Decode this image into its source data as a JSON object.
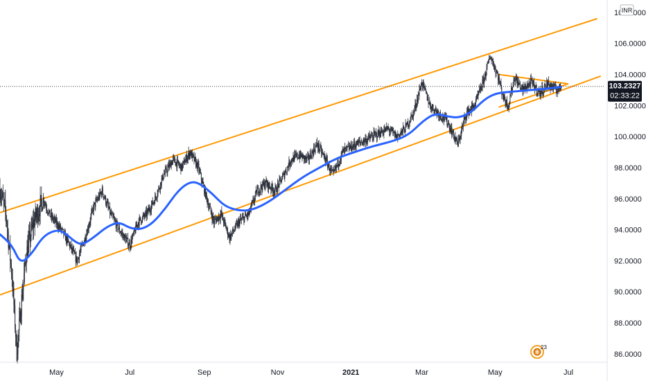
{
  "chart_data": {
    "type": "candlestick",
    "currency": "INR",
    "y_range": [
      85.5,
      108.8
    ],
    "x_range": [
      "2020-03-15",
      "2021-07-31"
    ],
    "y_ticks": [
      "86.0000",
      "88.0000",
      "90.0000",
      "92.0000",
      "94.0000",
      "96.0000",
      "98.0000",
      "100.0000",
      "102.0000",
      "104.0000",
      "106.0000",
      "108.0000"
    ],
    "x_ticks": [
      {
        "label": "May",
        "date": "2020-05-01",
        "bold": false
      },
      {
        "label": "Jul",
        "date": "2020-07-01",
        "bold": false
      },
      {
        "label": "Sep",
        "date": "2020-09-01",
        "bold": false
      },
      {
        "label": "Nov",
        "date": "2020-11-01",
        "bold": false
      },
      {
        "label": "2021",
        "date": "2021-01-01",
        "bold": true
      },
      {
        "label": "Mar",
        "date": "2021-03-01",
        "bold": false
      },
      {
        "label": "May",
        "date": "2021-05-01",
        "bold": false
      },
      {
        "label": "Jul",
        "date": "2021-07-01",
        "bold": false
      }
    ],
    "last_price": "103.2327",
    "last_price_value": 103.2327,
    "countdown": "02:33:22",
    "price_key_points": [
      [
        "2020-03-15",
        96.6
      ],
      [
        "2020-03-20",
        95.0
      ],
      [
        "2020-03-25",
        91.0
      ],
      [
        "2020-03-29",
        86.1
      ],
      [
        "2020-04-02",
        89.5
      ],
      [
        "2020-04-06",
        92.5
      ],
      [
        "2020-04-12",
        94.5
      ],
      [
        "2020-04-20",
        96.0
      ],
      [
        "2020-04-25",
        95.0
      ],
      [
        "2020-05-05",
        94.0
      ],
      [
        "2020-05-12",
        93.0
      ],
      [
        "2020-05-18",
        92.0
      ],
      [
        "2020-05-25",
        93.5
      ],
      [
        "2020-06-01",
        95.5
      ],
      [
        "2020-06-08",
        96.5
      ],
      [
        "2020-06-15",
        95.0
      ],
      [
        "2020-06-22",
        94.0
      ],
      [
        "2020-07-01",
        93.0
      ],
      [
        "2020-07-08",
        94.5
      ],
      [
        "2020-07-15",
        95.0
      ],
      [
        "2020-07-22",
        96.0
      ],
      [
        "2020-07-29",
        97.5
      ],
      [
        "2020-08-06",
        98.5
      ],
      [
        "2020-08-13",
        98.0
      ],
      [
        "2020-08-20",
        99.0
      ],
      [
        "2020-08-27",
        98.0
      ],
      [
        "2020-09-03",
        96.0
      ],
      [
        "2020-09-09",
        94.5
      ],
      [
        "2020-09-15",
        95.0
      ],
      [
        "2020-09-22",
        93.5
      ],
      [
        "2020-09-30",
        94.5
      ],
      [
        "2020-10-08",
        95.0
      ],
      [
        "2020-10-15",
        96.5
      ],
      [
        "2020-10-22",
        97.0
      ],
      [
        "2020-10-30",
        96.5
      ],
      [
        "2020-11-06",
        97.5
      ],
      [
        "2020-11-12",
        98.5
      ],
      [
        "2020-11-19",
        98.8
      ],
      [
        "2020-11-26",
        98.5
      ],
      [
        "2020-12-04",
        99.5
      ],
      [
        "2020-12-11",
        98.5
      ],
      [
        "2020-12-17",
        97.5
      ],
      [
        "2020-12-25",
        99.0
      ],
      [
        "2021-01-05",
        99.5
      ],
      [
        "2021-01-14",
        99.8
      ],
      [
        "2021-01-24",
        100.2
      ],
      [
        "2021-02-01",
        100.5
      ],
      [
        "2021-02-08",
        100.0
      ],
      [
        "2021-02-15",
        100.5
      ],
      [
        "2021-02-22",
        101.5
      ],
      [
        "2021-03-01",
        103.5
      ],
      [
        "2021-03-08",
        102.0
      ],
      [
        "2021-03-15",
        101.5
      ],
      [
        "2021-03-22",
        101.0
      ],
      [
        "2021-03-31",
        99.5
      ],
      [
        "2021-04-07",
        101.5
      ],
      [
        "2021-04-14",
        102.0
      ],
      [
        "2021-04-21",
        103.5
      ],
      [
        "2021-04-27",
        105.2
      ],
      [
        "2021-05-03",
        104.0
      ],
      [
        "2021-05-08",
        102.5
      ],
      [
        "2021-05-12",
        102.0
      ],
      [
        "2021-05-17",
        103.8
      ],
      [
        "2021-05-24",
        103.0
      ],
      [
        "2021-05-31",
        103.5
      ],
      [
        "2021-06-07",
        102.8
      ],
      [
        "2021-06-14",
        103.4
      ],
      [
        "2021-06-21",
        103.0
      ],
      [
        "2021-06-25",
        103.2
      ]
    ],
    "moving_average_points": [
      [
        "2020-03-15",
        93.7
      ],
      [
        "2020-03-25",
        93.0
      ],
      [
        "2020-04-01",
        91.8
      ],
      [
        "2020-04-10",
        92.4
      ],
      [
        "2020-04-20",
        93.6
      ],
      [
        "2020-05-01",
        94.0
      ],
      [
        "2020-05-08",
        93.8
      ],
      [
        "2020-05-15",
        93.3
      ],
      [
        "2020-05-22",
        93.0
      ],
      [
        "2020-06-01",
        93.5
      ],
      [
        "2020-06-12",
        94.2
      ],
      [
        "2020-06-22",
        94.5
      ],
      [
        "2020-07-01",
        94.1
      ],
      [
        "2020-07-10",
        94.0
      ],
      [
        "2020-07-20",
        94.4
      ],
      [
        "2020-07-31",
        95.4
      ],
      [
        "2020-08-10",
        96.5
      ],
      [
        "2020-08-20",
        97.1
      ],
      [
        "2020-08-28",
        97.0
      ],
      [
        "2020-09-08",
        96.3
      ],
      [
        "2020-09-18",
        95.5
      ],
      [
        "2020-10-01",
        95.2
      ],
      [
        "2020-10-12",
        95.3
      ],
      [
        "2020-10-25",
        95.8
      ],
      [
        "2020-11-08",
        96.6
      ],
      [
        "2020-11-22",
        97.4
      ],
      [
        "2020-12-06",
        98.0
      ],
      [
        "2020-12-20",
        98.6
      ],
      [
        "2021-01-04",
        99.0
      ],
      [
        "2021-01-20",
        99.4
      ],
      [
        "2021-02-05",
        99.7
      ],
      [
        "2021-02-18",
        100.1
      ],
      [
        "2021-03-02",
        101.0
      ],
      [
        "2021-03-12",
        101.5
      ],
      [
        "2021-03-22",
        101.3
      ],
      [
        "2021-04-01",
        101.2
      ],
      [
        "2021-04-12",
        101.6
      ],
      [
        "2021-04-22",
        102.4
      ],
      [
        "2021-05-02",
        102.8
      ],
      [
        "2021-05-16",
        102.9
      ],
      [
        "2021-05-31",
        103.0
      ],
      [
        "2021-06-15",
        103.1
      ],
      [
        "2021-06-25",
        103.2
      ]
    ],
    "trend_lines": [
      {
        "from": [
          "2020-03-15",
          95.1
        ],
        "to": [
          "2021-07-25",
          107.6
        ]
      },
      {
        "from": [
          "2020-03-15",
          89.8
        ],
        "to": [
          "2021-07-28",
          103.9
        ]
      },
      {
        "from": [
          "2021-05-04",
          104.0
        ],
        "to": [
          "2021-07-01",
          103.4
        ]
      },
      {
        "from": [
          "2021-05-04",
          101.9
        ],
        "to": [
          "2021-07-01",
          103.4
        ]
      }
    ],
    "colors": {
      "candles": "#2a2e39",
      "moving_average": "#2962ff",
      "trend_lines": "#ff9800",
      "price_label_bg": "#131722",
      "grid": "#e0e3eb",
      "dotted": "#363a45"
    },
    "grid": false,
    "legend": "none"
  },
  "events": {
    "count": "23"
  }
}
